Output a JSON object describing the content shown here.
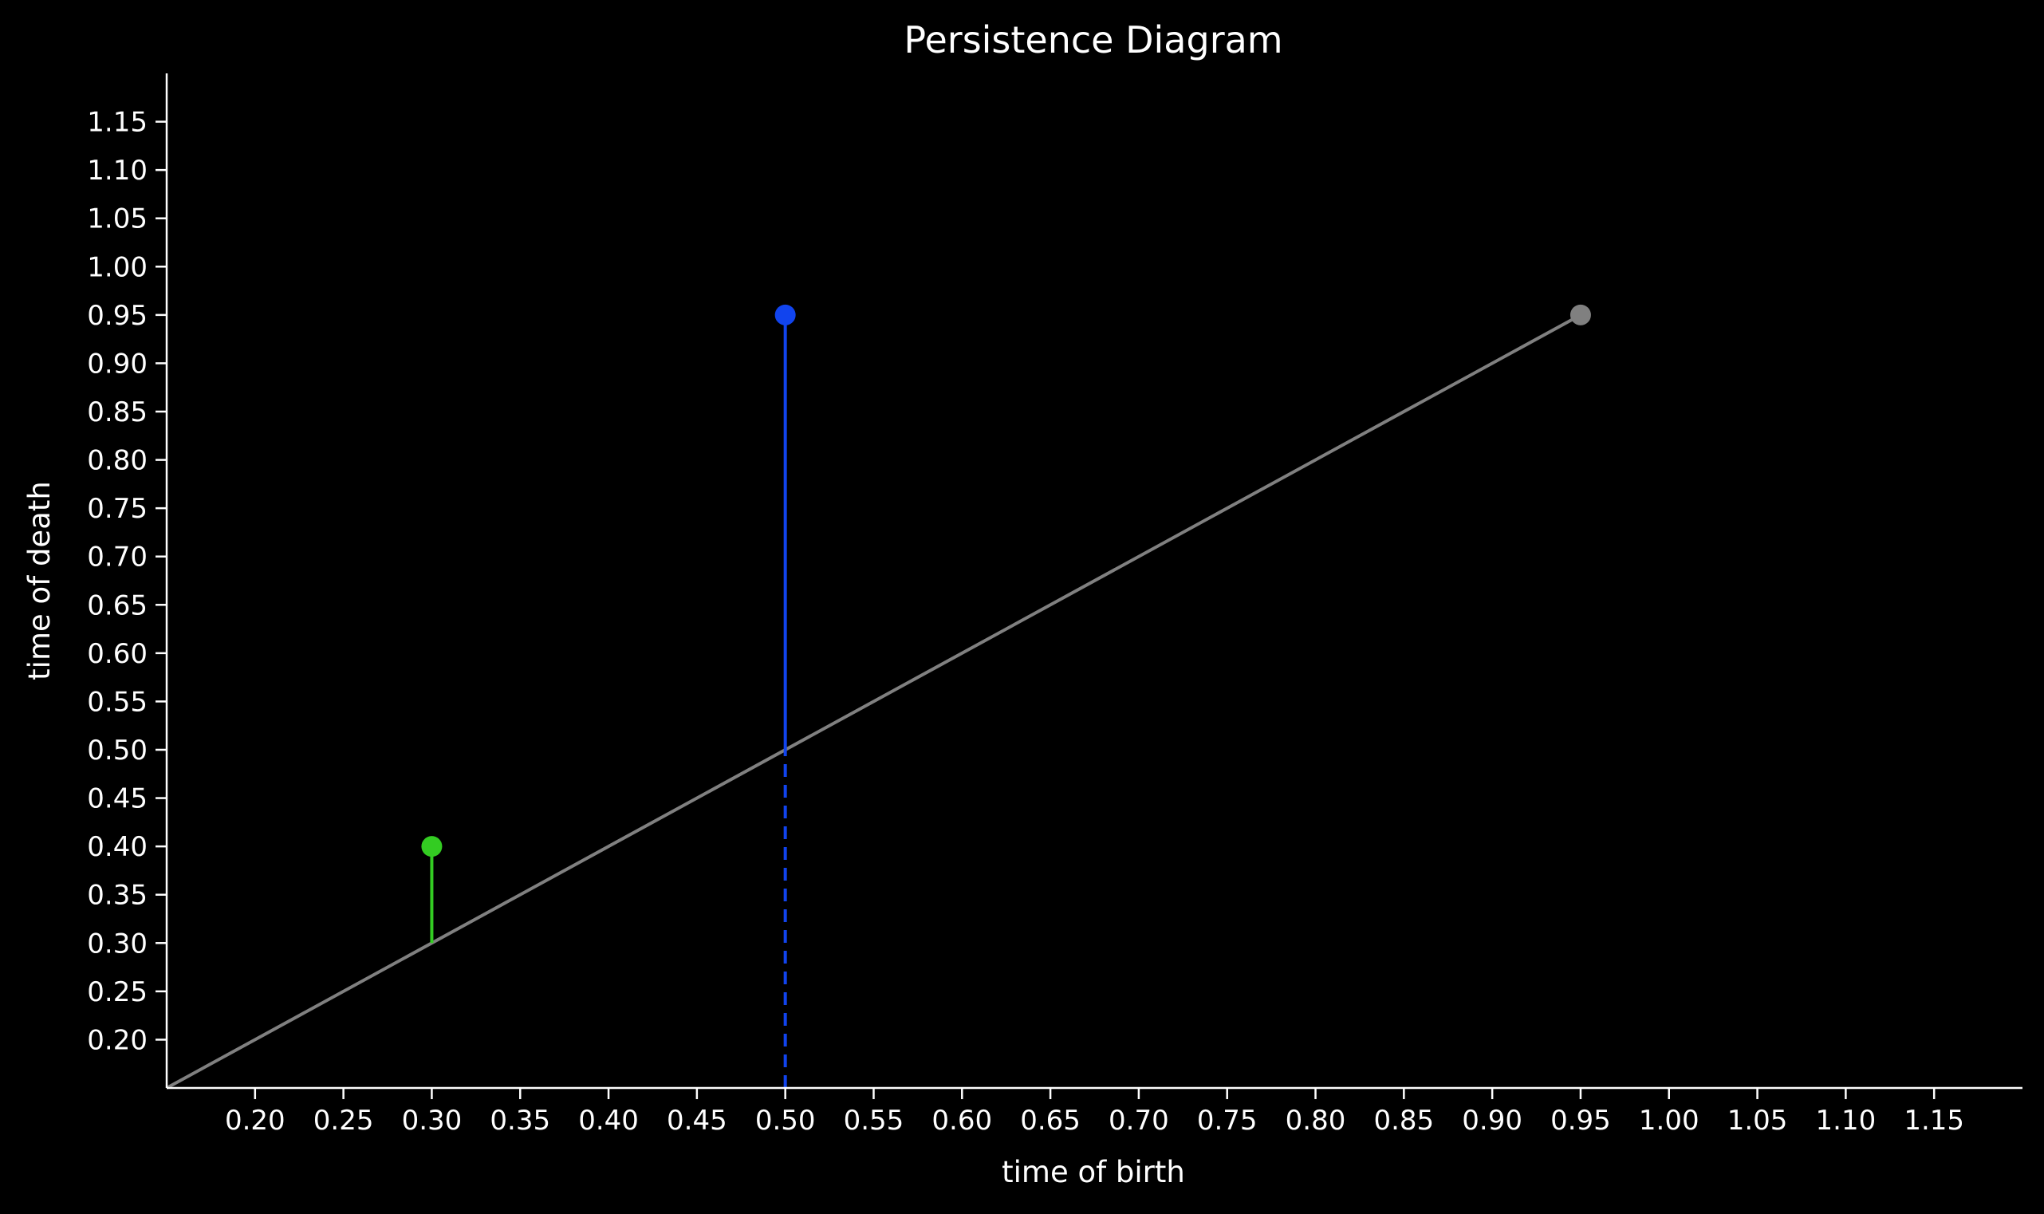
{
  "chart_data": {
    "type": "scatter",
    "title": "Persistence Diagram",
    "xlabel": "time of birth",
    "ylabel": "time of death",
    "xlim": [
      0.15,
      1.2
    ],
    "ylim": [
      0.15,
      1.2
    ],
    "xticks": [
      "0.20",
      "0.25",
      "0.30",
      "0.35",
      "0.40",
      "0.45",
      "0.50",
      "0.55",
      "0.60",
      "0.65",
      "0.70",
      "0.75",
      "0.80",
      "0.85",
      "0.90",
      "0.95",
      "1.00",
      "1.05",
      "1.10",
      "1.15"
    ],
    "yticks": [
      "0.20",
      "0.25",
      "0.30",
      "0.35",
      "0.40",
      "0.45",
      "0.50",
      "0.55",
      "0.60",
      "0.65",
      "0.70",
      "0.75",
      "0.80",
      "0.85",
      "0.90",
      "0.95",
      "1.00",
      "1.05",
      "1.10",
      "1.15"
    ],
    "diagonal": {
      "from": [
        0.15,
        0.15
      ],
      "to": [
        0.95,
        0.95
      ],
      "color": "#808080"
    },
    "points": [
      {
        "birth": 0.3,
        "death": 0.4,
        "color": "#33cc22"
      },
      {
        "birth": 0.5,
        "death": 0.95,
        "color": "#1144ee"
      },
      {
        "birth": 0.95,
        "death": 0.95,
        "color": "#808080"
      }
    ],
    "dashed_drop": {
      "x": 0.5,
      "from": 0.15,
      "to": 0.5,
      "color": "#1144ee"
    },
    "grid": false,
    "background": "#000000",
    "axis_color": "#ffffff"
  }
}
